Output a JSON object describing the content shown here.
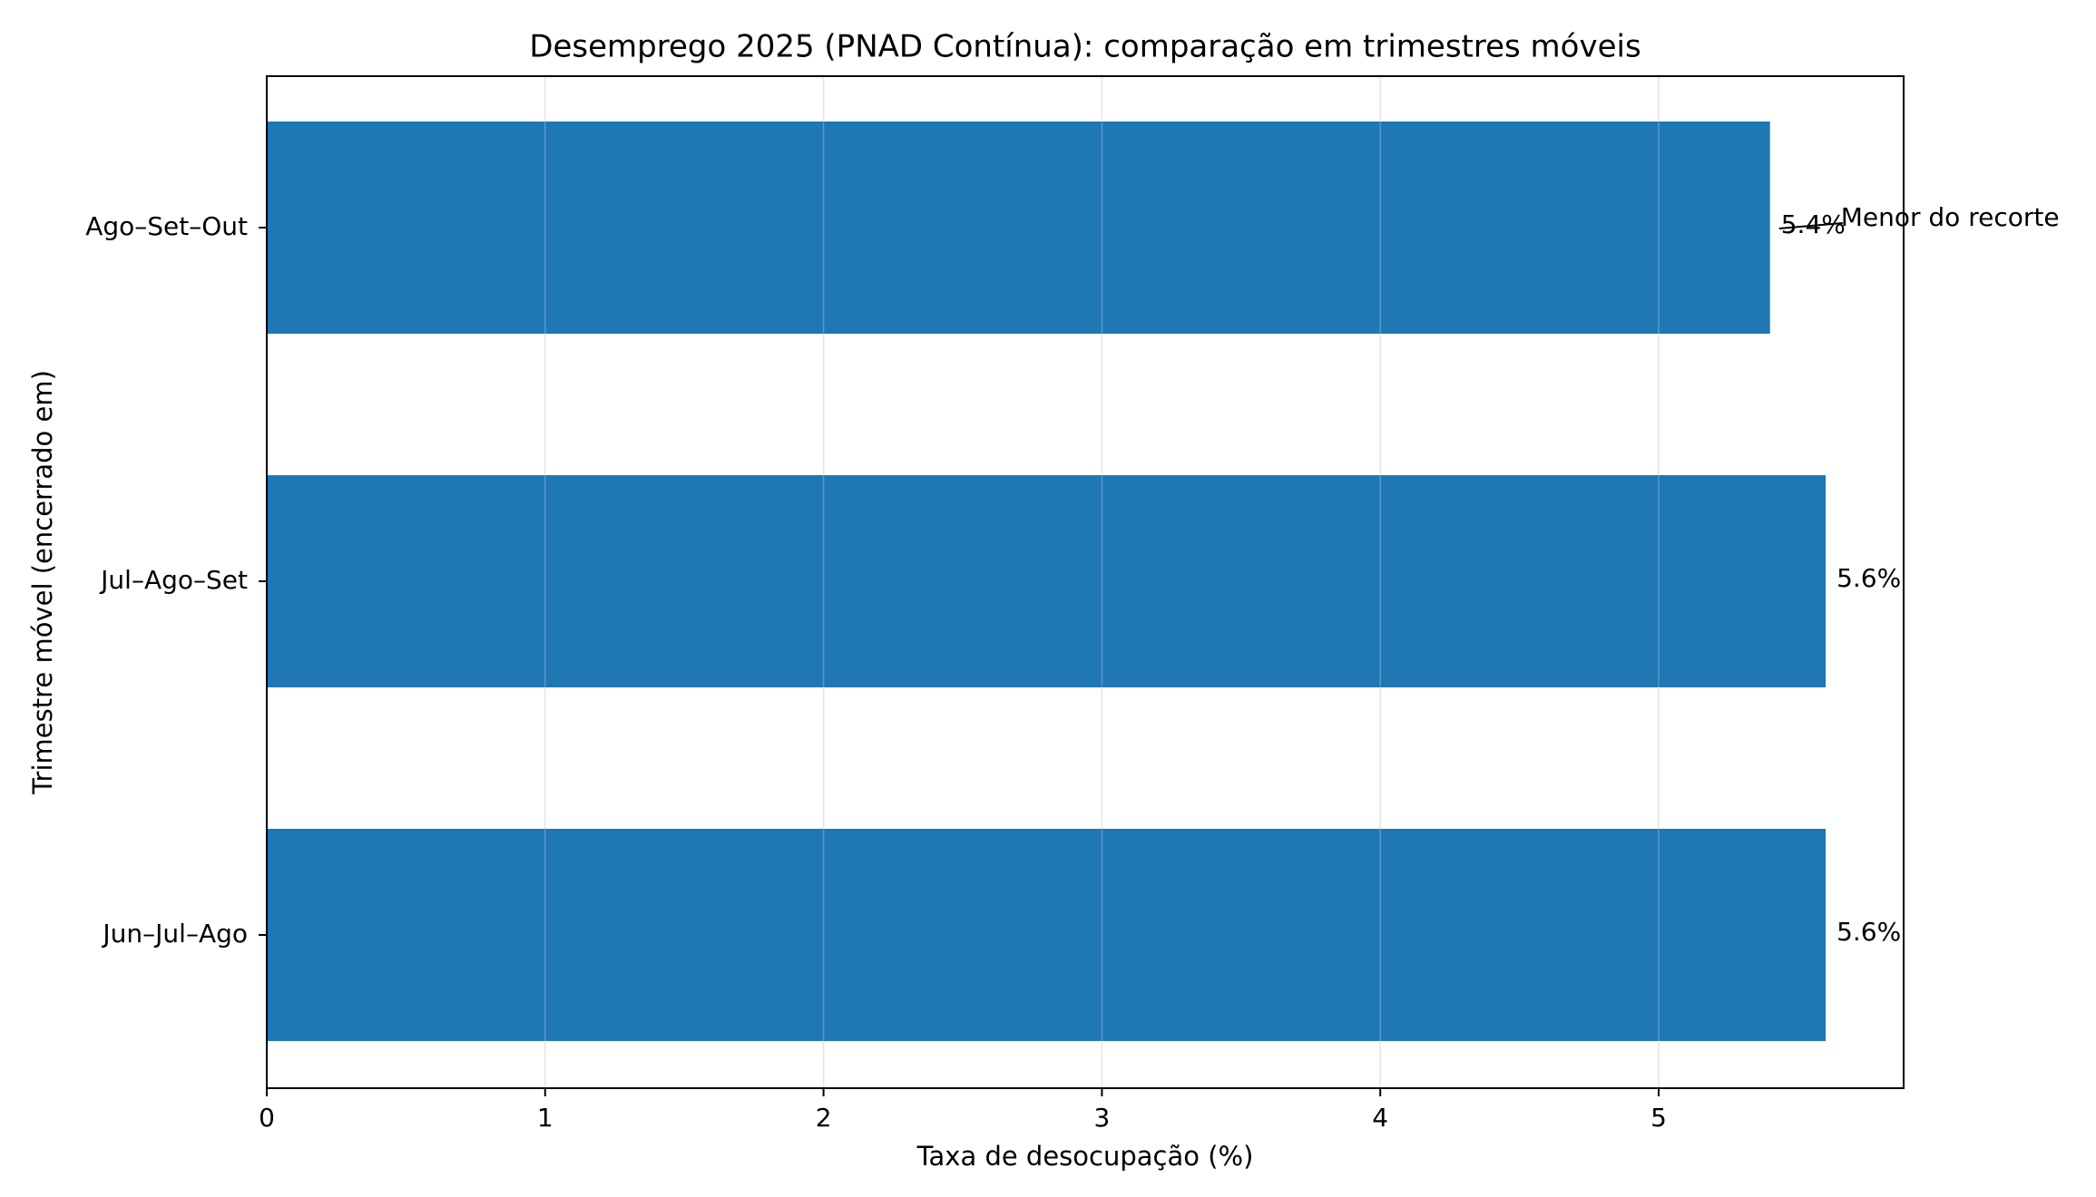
{
  "chart_data": {
    "type": "bar",
    "orientation": "horizontal",
    "title": "Desemprego 2025 (PNAD Contínua): comparação em trimestres móveis",
    "xlabel": "Taxa de desocupação (%)",
    "ylabel": "Trimestre móvel (encerrado em)",
    "categories": [
      "Ago–Set–Out",
      "Jul–Ago–Set",
      "Jun–Jul–Ago"
    ],
    "values": [
      5.4,
      5.6,
      5.6
    ],
    "data_labels": [
      "5.4%",
      "5.6%",
      "5.6%"
    ],
    "xlim": [
      0,
      5.88
    ],
    "xticks": [
      0,
      1,
      2,
      3,
      4,
      5
    ],
    "xtick_labels": [
      "0",
      "1",
      "2",
      "3",
      "4",
      "5"
    ],
    "grid": "vertical",
    "bar_color": "#1f77b4",
    "annotation": {
      "text": "Menor do recorte",
      "category": "Ago–Set–Out",
      "arrow_to_value": 5.4
    }
  }
}
